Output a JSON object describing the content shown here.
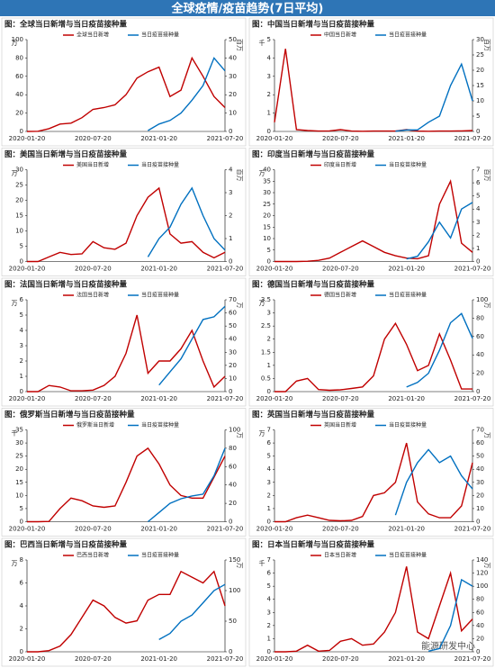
{
  "header": {
    "title": "全球疫情/疫苗趋势(7日平均)"
  },
  "watermark": "能源研发中心",
  "chart_data": [
    {
      "type": "line",
      "title": "图：全球当日新增与当日疫苗接种量",
      "y_unit": "万",
      "y2_unit": "百万",
      "x": [
        "2020-01-20",
        "2020-02-20",
        "2020-03-20",
        "2020-04-20",
        "2020-05-20",
        "2020-06-20",
        "2020-07-20",
        "2020-08-20",
        "2020-09-20",
        "2020-10-20",
        "2020-11-20",
        "2020-12-20",
        "2021-01-20",
        "2021-02-20",
        "2021-03-20",
        "2021-04-20",
        "2021-05-20",
        "2021-06-20",
        "2021-07-20"
      ],
      "xticks": [
        "2020-01-20",
        "2020-07-20",
        "2021-01-20",
        "2021-07-20"
      ],
      "ylim": [
        0,
        100
      ],
      "yticks": [
        0,
        20,
        40,
        60,
        80,
        100
      ],
      "y2lim": [
        0,
        50
      ],
      "y2ticks": [
        0,
        10,
        20,
        30,
        40,
        50
      ],
      "series": [
        {
          "name": "全球当日新增",
          "color": "#c00000",
          "values": [
            0,
            0.2,
            3,
            8,
            9,
            15,
            24,
            26,
            29,
            40,
            58,
            65,
            70,
            38,
            45,
            80,
            60,
            38,
            26
          ]
        },
        {
          "name": "当日疫苗接种量",
          "color": "#0070c0",
          "axis": "y2",
          "values": [
            null,
            null,
            null,
            null,
            null,
            null,
            null,
            null,
            null,
            null,
            null,
            0.5,
            4,
            6,
            10,
            17,
            25,
            40,
            33
          ]
        }
      ]
    },
    {
      "type": "line",
      "title": "图：中国当日新增与当日疫苗接种量",
      "y_unit": "千",
      "y2_unit": "百万",
      "x": [
        "2020-01-20",
        "2020-02-20",
        "2020-03-20",
        "2020-04-20",
        "2020-05-20",
        "2020-06-20",
        "2020-07-20",
        "2020-08-20",
        "2020-09-20",
        "2020-10-20",
        "2020-11-20",
        "2020-12-20",
        "2021-01-20",
        "2021-02-20",
        "2021-03-20",
        "2021-04-20",
        "2021-05-20",
        "2021-06-20",
        "2021-07-20"
      ],
      "xticks": [
        "2020-01-20",
        "2020-07-20",
        "2021-01-20",
        "2021-07-20"
      ],
      "ylim": [
        0,
        5
      ],
      "yticks": [
        0,
        1,
        2,
        3,
        4,
        5
      ],
      "y2lim": [
        0,
        30
      ],
      "y2ticks": [
        0,
        5,
        10,
        15,
        20,
        25,
        30
      ],
      "series": [
        {
          "name": "中国当日新增",
          "color": "#c00000",
          "values": [
            0.5,
            4.5,
            0.1,
            0.05,
            0.02,
            0.03,
            0.1,
            0.02,
            0.01,
            0.02,
            0.02,
            0.02,
            0.1,
            0.02,
            0.01,
            0.02,
            0.02,
            0.03,
            0.05
          ]
        },
        {
          "name": "当日疫苗接种量",
          "color": "#0070c0",
          "axis": "y2",
          "values": [
            null,
            null,
            null,
            null,
            null,
            null,
            null,
            null,
            null,
            null,
            null,
            0.1,
            0.5,
            0.5,
            3,
            5,
            15,
            22,
            10
          ]
        }
      ]
    },
    {
      "type": "line",
      "title": "图：美国当日新增与当日疫苗接种量",
      "y_unit": "万",
      "y2_unit": "百万",
      "x": [
        "2020-01-20",
        "2020-02-20",
        "2020-03-20",
        "2020-04-20",
        "2020-05-20",
        "2020-06-20",
        "2020-07-20",
        "2020-08-20",
        "2020-09-20",
        "2020-10-20",
        "2020-11-20",
        "2020-12-20",
        "2021-01-20",
        "2021-02-20",
        "2021-03-20",
        "2021-04-20",
        "2021-05-20",
        "2021-06-20",
        "2021-07-20"
      ],
      "xticks": [
        "2020-01-20",
        "2020-07-20",
        "2021-01-20",
        "2021-07-20"
      ],
      "ylim": [
        0,
        30
      ],
      "yticks": [
        0,
        5,
        10,
        15,
        20,
        25,
        30
      ],
      "y2lim": [
        0,
        4
      ],
      "y2ticks": [
        0,
        1,
        2,
        3,
        4
      ],
      "series": [
        {
          "name": "美国当日新增",
          "color": "#c00000",
          "values": [
            0,
            0,
            1.5,
            3,
            2.3,
            2.5,
            6.5,
            4.5,
            4,
            6,
            15,
            21,
            24,
            9,
            6,
            6.5,
            3,
            1.2,
            3
          ]
        },
        {
          "name": "当日疫苗接种量",
          "color": "#0070c0",
          "axis": "y2",
          "values": [
            null,
            null,
            null,
            null,
            null,
            null,
            null,
            null,
            null,
            null,
            null,
            0.2,
            1,
            1.5,
            2.5,
            3.2,
            2,
            1,
            0.5
          ]
        }
      ]
    },
    {
      "type": "line",
      "title": "图：印度当日新增与当日疫苗接种量",
      "y_unit": "万",
      "y2_unit": "百万",
      "x": [
        "2020-01-20",
        "2020-02-20",
        "2020-03-20",
        "2020-04-20",
        "2020-05-20",
        "2020-06-20",
        "2020-07-20",
        "2020-08-20",
        "2020-09-20",
        "2020-10-20",
        "2020-11-20",
        "2020-12-20",
        "2021-01-20",
        "2021-02-20",
        "2021-03-20",
        "2021-04-20",
        "2021-05-20",
        "2021-06-20",
        "2021-07-20"
      ],
      "xticks": [
        "2020-01-20",
        "2020-07-20",
        "2021-01-20",
        "2021-07-20"
      ],
      "ylim": [
        0,
        40
      ],
      "yticks": [
        0,
        5,
        10,
        15,
        20,
        25,
        30,
        35,
        40
      ],
      "y2lim": [
        0,
        7
      ],
      "y2ticks": [
        0,
        1,
        2,
        3,
        4,
        5,
        6,
        7
      ],
      "series": [
        {
          "name": "印度当日新增",
          "color": "#c00000",
          "values": [
            0,
            0,
            0,
            0.1,
            0.5,
            1.5,
            4,
            6.5,
            9,
            6.5,
            4,
            2.5,
            1.5,
            1.2,
            2.5,
            25,
            35,
            8,
            4
          ]
        },
        {
          "name": "当日疫苗接种量",
          "color": "#0070c0",
          "axis": "y2",
          "values": [
            null,
            null,
            null,
            null,
            null,
            null,
            null,
            null,
            null,
            null,
            null,
            null,
            0.2,
            0.4,
            1.5,
            3,
            1.8,
            4,
            4.5
          ]
        }
      ]
    },
    {
      "type": "line",
      "title": "图：法国当日新增与当日疫苗接种量",
      "y_unit": "万",
      "y2_unit": "万",
      "x": [
        "2020-01-20",
        "2020-02-20",
        "2020-03-20",
        "2020-04-20",
        "2020-05-20",
        "2020-06-20",
        "2020-07-20",
        "2020-08-20",
        "2020-09-20",
        "2020-10-20",
        "2020-11-20",
        "2020-12-20",
        "2021-01-20",
        "2021-02-20",
        "2021-03-20",
        "2021-04-20",
        "2021-05-20",
        "2021-06-20",
        "2021-07-20"
      ],
      "xticks": [
        "2020-01-20",
        "2020-07-20",
        "2021-01-20",
        "2021-07-20"
      ],
      "ylim": [
        0,
        6
      ],
      "yticks": [
        0,
        1,
        2,
        3,
        4,
        5,
        6
      ],
      "y2lim": [
        0,
        70
      ],
      "y2ticks": [
        0,
        10,
        20,
        30,
        40,
        50,
        60,
        70
      ],
      "series": [
        {
          "name": "法国当日新增",
          "color": "#c00000",
          "values": [
            0,
            0,
            0.4,
            0.3,
            0.05,
            0.05,
            0.1,
            0.4,
            1,
            2.5,
            5,
            1.2,
            2,
            2,
            2.8,
            4,
            2,
            0.3,
            1
          ]
        },
        {
          "name": "当日疫苗接种量",
          "color": "#0070c0",
          "axis": "y2",
          "values": [
            null,
            null,
            null,
            null,
            null,
            null,
            null,
            null,
            null,
            null,
            null,
            null,
            5,
            15,
            25,
            40,
            55,
            57,
            65
          ]
        }
      ]
    },
    {
      "type": "line",
      "title": "图：德国当日新增与当日疫苗接种量",
      "y_unit": "万",
      "y2_unit": "万",
      "x": [
        "2020-01-20",
        "2020-02-20",
        "2020-03-20",
        "2020-04-20",
        "2020-05-20",
        "2020-06-20",
        "2020-07-20",
        "2020-08-20",
        "2020-09-20",
        "2020-10-20",
        "2020-11-20",
        "2020-12-20",
        "2021-01-20",
        "2021-02-20",
        "2021-03-20",
        "2021-04-20",
        "2021-05-20",
        "2021-06-20",
        "2021-07-20"
      ],
      "xticks": [
        "2020-01-20",
        "2020-07-20",
        "2021-01-20",
        "2021-07-20"
      ],
      "ylim": [
        0,
        3.5
      ],
      "yticks": [
        0,
        0.5,
        1,
        1.5,
        2,
        2.5,
        3,
        3.5
      ],
      "y2lim": [
        0,
        100
      ],
      "y2ticks": [
        0,
        20,
        40,
        60,
        80,
        100
      ],
      "series": [
        {
          "name": "德国当日新增",
          "color": "#c00000",
          "values": [
            0,
            0,
            0.4,
            0.5,
            0.08,
            0.05,
            0.07,
            0.12,
            0.18,
            0.6,
            2,
            2.6,
            1.8,
            0.8,
            1,
            2.2,
            1.2,
            0.1,
            0.1
          ]
        },
        {
          "name": "当日疫苗接种量",
          "color": "#0070c0",
          "axis": "y2",
          "values": [
            null,
            null,
            null,
            null,
            null,
            null,
            null,
            null,
            null,
            null,
            null,
            null,
            5,
            10,
            20,
            45,
            75,
            85,
            58
          ]
        }
      ]
    },
    {
      "type": "line",
      "title": "图：俄罗斯当日新增与当日疫苗接种量",
      "y_unit": "千",
      "y2_unit": "万",
      "x": [
        "2020-01-20",
        "2020-02-20",
        "2020-03-20",
        "2020-04-20",
        "2020-05-20",
        "2020-06-20",
        "2020-07-20",
        "2020-08-20",
        "2020-09-20",
        "2020-10-20",
        "2020-11-20",
        "2020-12-20",
        "2021-01-20",
        "2021-02-20",
        "2021-03-20",
        "2021-04-20",
        "2021-05-20",
        "2021-06-20",
        "2021-07-20"
      ],
      "xticks": [
        "2020-01-20",
        "2020-07-20",
        "2021-01-20",
        "2021-07-20"
      ],
      "ylim": [
        0,
        35
      ],
      "yticks": [
        0,
        5,
        10,
        15,
        20,
        25,
        30,
        35
      ],
      "y2lim": [
        0,
        100
      ],
      "y2ticks": [
        0,
        20,
        40,
        60,
        80,
        100
      ],
      "series": [
        {
          "name": "俄罗斯当日新增",
          "color": "#c00000",
          "values": [
            0,
            0,
            0.1,
            5,
            9,
            8,
            6,
            5.5,
            6,
            15,
            25,
            28,
            22,
            14,
            10,
            9,
            9,
            17,
            25
          ]
        },
        {
          "name": "当日疫苗接种量",
          "color": "#0070c0",
          "axis": "y2",
          "values": [
            null,
            null,
            null,
            null,
            null,
            null,
            null,
            null,
            null,
            null,
            null,
            0,
            10,
            20,
            25,
            28,
            30,
            50,
            80
          ]
        }
      ]
    },
    {
      "type": "line",
      "title": "图：英国当日新增与当日疫苗接种量",
      "y_unit": "万",
      "y2_unit": "万",
      "x": [
        "2020-01-20",
        "2020-02-20",
        "2020-03-20",
        "2020-04-20",
        "2020-05-20",
        "2020-06-20",
        "2020-07-20",
        "2020-08-20",
        "2020-09-20",
        "2020-10-20",
        "2020-11-20",
        "2020-12-20",
        "2021-01-20",
        "2021-02-20",
        "2021-03-20",
        "2021-04-20",
        "2021-05-20",
        "2021-06-20",
        "2021-07-20"
      ],
      "xticks": [
        "2020-01-20",
        "2020-07-20",
        "2021-01-20",
        "2021-07-20"
      ],
      "ylim": [
        0,
        7
      ],
      "yticks": [
        0,
        1,
        2,
        3,
        4,
        5,
        6,
        7
      ],
      "y2lim": [
        0,
        70
      ],
      "y2ticks": [
        0,
        10,
        20,
        30,
        40,
        50,
        60,
        70
      ],
      "series": [
        {
          "name": "英国当日新增",
          "color": "#c00000",
          "values": [
            0,
            0,
            0.3,
            0.5,
            0.3,
            0.1,
            0.07,
            0.1,
            0.4,
            2,
            2.2,
            3,
            6,
            1.5,
            0.6,
            0.3,
            0.3,
            1.2,
            4.5
          ]
        },
        {
          "name": "当日疫苗接种量",
          "color": "#0070c0",
          "axis": "y2",
          "values": [
            null,
            null,
            null,
            null,
            null,
            null,
            null,
            null,
            null,
            null,
            null,
            5,
            30,
            45,
            55,
            45,
            50,
            35,
            25
          ]
        }
      ]
    },
    {
      "type": "line",
      "title": "图：巴西当日新增与当日疫苗接种量",
      "y_unit": "万",
      "y2_unit": "万",
      "x": [
        "2020-01-20",
        "2020-02-20",
        "2020-03-20",
        "2020-04-20",
        "2020-05-20",
        "2020-06-20",
        "2020-07-20",
        "2020-08-20",
        "2020-09-20",
        "2020-10-20",
        "2020-11-20",
        "2020-12-20",
        "2021-01-20",
        "2021-02-20",
        "2021-03-20",
        "2021-04-20",
        "2021-05-20",
        "2021-06-20",
        "2021-07-20"
      ],
      "xticks": [
        "2020-01-20",
        "2020-07-20",
        "2021-01-20",
        "2021-07-20"
      ],
      "ylim": [
        0,
        8
      ],
      "yticks": [
        0,
        2,
        4,
        6,
        8
      ],
      "y2lim": [
        0,
        150
      ],
      "y2ticks": [
        0,
        50,
        100,
        150
      ],
      "series": [
        {
          "name": "巴西当日新增",
          "color": "#c00000",
          "values": [
            0,
            0,
            0.1,
            0.5,
            1.5,
            3,
            4.5,
            4,
            3,
            2.5,
            2.7,
            4.5,
            5,
            5,
            7,
            6.5,
            6,
            7,
            4
          ]
        },
        {
          "name": "当日疫苗接种量",
          "color": "#0070c0",
          "axis": "y2",
          "values": [
            null,
            null,
            null,
            null,
            null,
            null,
            null,
            null,
            null,
            null,
            null,
            null,
            20,
            30,
            50,
            60,
            80,
            100,
            110
          ]
        }
      ]
    },
    {
      "type": "line",
      "title": "图：日本当日新增与当日疫苗接种量",
      "y_unit": "千",
      "y2_unit": "万",
      "x": [
        "2020-01-20",
        "2020-02-20",
        "2020-03-20",
        "2020-04-20",
        "2020-05-20",
        "2020-06-20",
        "2020-07-20",
        "2020-08-20",
        "2020-09-20",
        "2020-10-20",
        "2020-11-20",
        "2020-12-20",
        "2021-01-20",
        "2021-02-20",
        "2021-03-20",
        "2021-04-20",
        "2021-05-20",
        "2021-06-20",
        "2021-07-20"
      ],
      "xticks": [
        "2020-01-20",
        "2020-07-20",
        "2021-01-20",
        "2021-07-20"
      ],
      "ylim": [
        0,
        7
      ],
      "yticks": [
        0,
        1,
        2,
        3,
        4,
        5,
        6,
        7
      ],
      "y2lim": [
        0,
        140
      ],
      "y2ticks": [
        0,
        20,
        40,
        60,
        80,
        100,
        120,
        140
      ],
      "series": [
        {
          "name": "日本当日新增",
          "color": "#c00000",
          "values": [
            0,
            0,
            0.05,
            0.5,
            0.05,
            0.1,
            0.8,
            1,
            0.5,
            0.6,
            1.5,
            3,
            6.5,
            1.5,
            1,
            3.5,
            6,
            1.6,
            2.5
          ]
        },
        {
          "name": "当日疫苗接种量",
          "color": "#0070c0",
          "axis": "y2",
          "values": [
            null,
            null,
            null,
            null,
            null,
            null,
            null,
            null,
            null,
            null,
            null,
            null,
            null,
            null,
            1,
            5,
            40,
            110,
            100
          ]
        }
      ]
    }
  ]
}
